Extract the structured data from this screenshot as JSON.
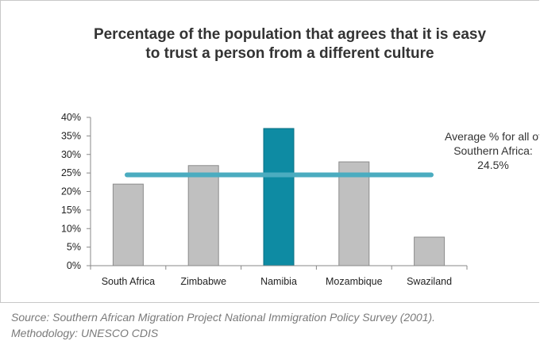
{
  "chart_data": {
    "type": "bar",
    "title": "Percentage of the population that agrees that it is easy to trust a person from a different culture",
    "title_lines": [
      "Percentage of the population that agrees that it is easy",
      "to trust a person from a different culture"
    ],
    "categories": [
      "South Africa",
      "Zimbabwe",
      "Namibia",
      "Mozambique",
      "Swaziland"
    ],
    "values": [
      22,
      27,
      37,
      28,
      7.7
    ],
    "unit": "%",
    "xlabel": "",
    "ylabel": "",
    "ylim": [
      0,
      40
    ],
    "y_ticks": [
      0,
      5,
      10,
      15,
      20,
      25,
      30,
      35,
      40
    ],
    "y_tick_labels": [
      "0%",
      "5%",
      "10%",
      "15%",
      "20%",
      "25%",
      "30%",
      "35%",
      "40%"
    ],
    "grid": false,
    "highlight_category": "Namibia",
    "colors": {
      "bar": "#c0c0c0",
      "bar_stroke": "#8c8c8c",
      "highlight": "#0e8ba3",
      "average_line": "#4bacc0"
    },
    "average_line": {
      "value": 24.5,
      "label_lines": [
        "Average % for all of",
        "Southern Africa:",
        "24.5%"
      ]
    }
  },
  "source": {
    "line1": "Source: Southern African Migration Project National Immigration Policy Survey (2001).",
    "line2": "Methodology: UNESCO CDIS"
  }
}
